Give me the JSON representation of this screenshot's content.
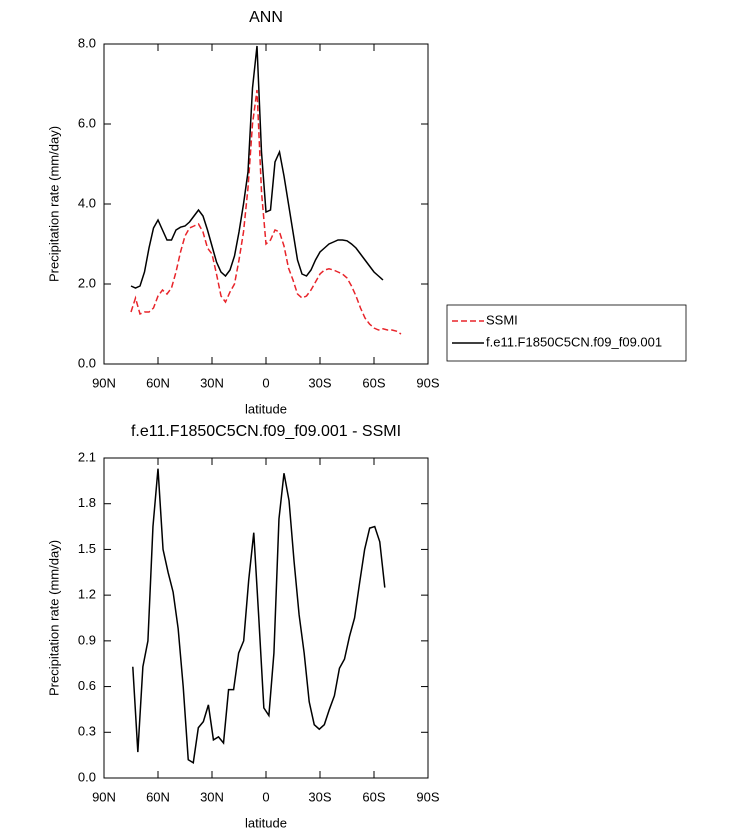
{
  "chart_data": [
    {
      "type": "line",
      "title": "ANN",
      "xlabel": "latitude",
      "ylabel": "Precipitation rate (mm/day)",
      "x": [
        75,
        72.5,
        70,
        67.5,
        65,
        62.5,
        60,
        57.5,
        55,
        52.5,
        50,
        47.5,
        45,
        42.5,
        40,
        37.5,
        35,
        32.5,
        30,
        27.5,
        25,
        22.5,
        20,
        17.5,
        15,
        12.5,
        10,
        7.5,
        5,
        2.5,
        0,
        -2.5,
        -5,
        -7.5,
        -10,
        -12.5,
        -15,
        -17.5,
        -20,
        -22.5,
        -25,
        -27.5,
        -30,
        -32.5,
        -35,
        -37.5,
        -40,
        -42.5,
        -45,
        -47.5,
        -50,
        -52.5,
        -55,
        -57.5,
        -60,
        -62.5,
        -65,
        -67.5,
        -70,
        -72.5,
        -75
      ],
      "series": [
        {
          "name": "SSMI",
          "color": "#e8242a",
          "dashed": true,
          "values": [
            1.3,
            1.65,
            1.25,
            1.3,
            1.3,
            1.4,
            1.7,
            1.85,
            1.75,
            1.9,
            2.3,
            2.8,
            3.2,
            3.4,
            3.45,
            3.5,
            3.3,
            2.9,
            2.75,
            2.25,
            1.7,
            1.55,
            1.8,
            2.0,
            2.6,
            3.3,
            4.4,
            6.0,
            6.85,
            4.3,
            3.0,
            3.1,
            3.35,
            3.3,
            2.95,
            2.4,
            2.1,
            1.75,
            1.65,
            1.7,
            1.85,
            2.05,
            2.25,
            2.35,
            2.38,
            2.35,
            2.3,
            2.25,
            2.15,
            1.95,
            1.7,
            1.4,
            1.15,
            1.0,
            0.9,
            0.85,
            0.88,
            0.85,
            0.85,
            0.82,
            0.75
          ]
        },
        {
          "name": "f.e11.F1850C5CN.f09_f09.001",
          "color": "#000000",
          "dashed": false,
          "values": [
            1.95,
            1.9,
            1.95,
            2.3,
            2.9,
            3.4,
            3.6,
            3.35,
            3.1,
            3.1,
            3.35,
            3.42,
            3.45,
            3.55,
            3.7,
            3.85,
            3.7,
            3.35,
            2.95,
            2.55,
            2.3,
            2.2,
            2.35,
            2.7,
            3.3,
            4.0,
            4.8,
            6.9,
            7.95,
            5.3,
            3.8,
            3.85,
            5.05,
            5.3,
            4.7,
            4.0,
            3.3,
            2.6,
            2.25,
            2.2,
            2.35,
            2.6,
            2.8,
            2.9,
            3.0,
            3.05,
            3.1,
            3.1,
            3.08,
            3.0,
            2.9,
            2.75,
            2.6,
            2.45,
            2.3,
            2.2,
            2.1,
            null,
            null,
            null,
            null
          ]
        }
      ],
      "xlim": [
        90,
        -90
      ],
      "xticks": [
        {
          "value": 90,
          "label": "90N"
        },
        {
          "value": 60,
          "label": "60N"
        },
        {
          "value": 30,
          "label": "30N"
        },
        0,
        {
          "value": -30,
          "label": "30S"
        },
        {
          "value": -60,
          "label": "60S"
        },
        {
          "value": -90,
          "label": "90S"
        }
      ],
      "ylim": [
        0,
        8
      ],
      "yticks": [
        {
          "value": 0,
          "label": "0.0"
        },
        {
          "value": 2,
          "label": "2.0"
        },
        {
          "value": 4,
          "label": "4.0"
        },
        {
          "value": 6,
          "label": "6.0"
        },
        {
          "value": 8,
          "label": "8.0"
        }
      ],
      "legend": "right"
    },
    {
      "type": "line",
      "title": "f.e11.F1850C5CN.f09_f09.001 - SSMI",
      "xlabel": "latitude",
      "ylabel": "Precipitation rate (mm/day)",
      "x": [
        74.0,
        71.2,
        68.4,
        65.6,
        62.8,
        60.0,
        57.2,
        54.4,
        51.6,
        48.8,
        46.0,
        43.2,
        40.4,
        37.6,
        34.8,
        32.0,
        29.2,
        26.4,
        23.6,
        20.8,
        18.0,
        15.2,
        12.4,
        9.6,
        6.8,
        4.0,
        1.2,
        -1.6,
        -4.4,
        -7.2,
        -10.0,
        -12.8,
        -15.6,
        -18.4,
        -21.2,
        -24.0,
        -26.8,
        -29.6,
        -32.4,
        -35.2,
        -38.0,
        -40.8,
        -43.6,
        -46.4,
        -49.2,
        -52.0,
        -54.8,
        -57.6,
        -60.4,
        -63.2,
        -66.0
      ],
      "values": [
        0.73,
        0.17,
        0.73,
        0.9,
        1.65,
        2.03,
        1.5,
        1.35,
        1.22,
        0.98,
        0.6,
        0.12,
        0.1,
        0.33,
        0.37,
        0.48,
        0.25,
        0.27,
        0.23,
        0.58,
        0.58,
        0.82,
        0.9,
        1.3,
        1.61,
        1.05,
        0.46,
        0.41,
        0.82,
        1.7,
        2.0,
        1.82,
        1.42,
        1.07,
        0.82,
        0.5,
        0.35,
        0.32,
        0.35,
        0.45,
        0.54,
        0.72,
        0.78,
        0.93,
        1.05,
        1.28,
        1.5,
        1.64,
        1.65,
        1.55,
        1.25
      ],
      "color": "#000000",
      "xlim": [
        90,
        -90
      ],
      "xticks": [
        {
          "value": 90,
          "label": "90N"
        },
        {
          "value": 60,
          "label": "60N"
        },
        {
          "value": 30,
          "label": "30N"
        },
        0,
        {
          "value": -30,
          "label": "30S"
        },
        {
          "value": -60,
          "label": "60S"
        },
        {
          "value": -90,
          "label": "90S"
        }
      ],
      "ylim": [
        0,
        2.1
      ],
      "yticks": [
        {
          "value": 0,
          "label": "0.0"
        },
        0.3,
        0.6,
        0.9,
        1.2,
        1.5,
        1.8,
        2.1
      ]
    }
  ]
}
